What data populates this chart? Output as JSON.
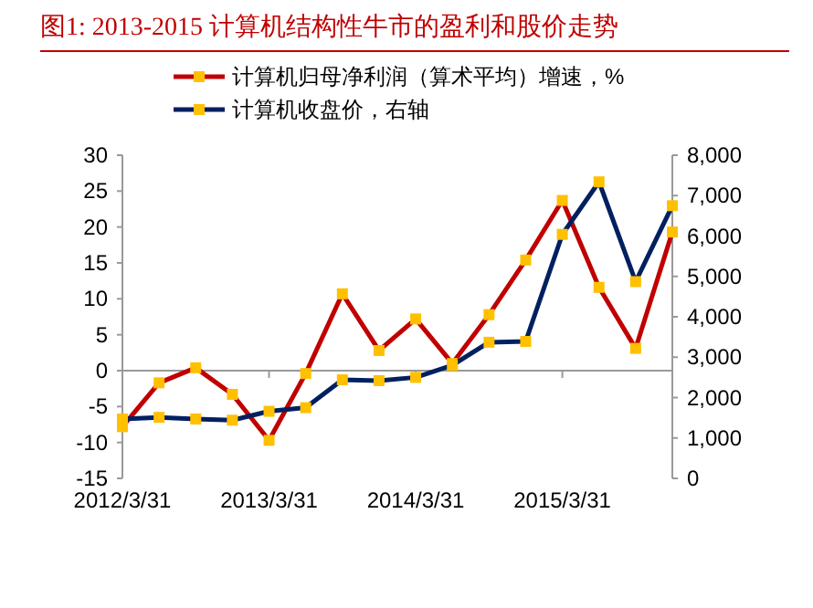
{
  "chart_data": {
    "type": "line",
    "title": "图1:  2013-2015 计算机结构性牛市的盈利和股价走势",
    "categories": [
      "2012/3/31",
      null,
      null,
      null,
      "2013/3/31",
      null,
      null,
      null,
      "2014/3/31",
      null,
      null,
      null,
      "2015/3/31",
      null,
      null,
      null
    ],
    "series": [
      {
        "name": "计算机归母净利润（算术平均）增速，%",
        "color": "#c00000",
        "values": [
          -7.8,
          -1.7,
          0.4,
          -3.3,
          -9.7,
          -0.4,
          10.7,
          2.8,
          7.2,
          1.0,
          7.8,
          15.4,
          23.7,
          11.6,
          3.1,
          19.3
        ]
      },
      {
        "name": "计算机收盘价，右轴",
        "color": "#002060",
        "axis": "y2",
        "values": [
          1470,
          1510,
          1470,
          1440,
          1660,
          1750,
          2440,
          2420,
          2500,
          2800,
          3370,
          3390,
          6040,
          7340,
          4870,
          6750
        ]
      }
    ],
    "ylim": [
      -15,
      30
    ],
    "yticks": [
      -15,
      -10,
      -5,
      0,
      5,
      10,
      15,
      20,
      25,
      30
    ],
    "y2lim": [
      0,
      8000
    ],
    "y2ticks": [
      0,
      {
        "value": 1000,
        "label": "1,000"
      },
      {
        "value": 2000,
        "label": "2,000"
      },
      {
        "value": 3000,
        "label": "3,000"
      },
      {
        "value": 4000,
        "label": "4,000"
      },
      {
        "value": 5000,
        "label": "5,000"
      },
      {
        "value": 6000,
        "label": "6,000"
      },
      {
        "value": 7000,
        "label": "7,000"
      },
      {
        "value": 8000,
        "label": "8,000"
      }
    ],
    "legend": "top left",
    "marker": "square",
    "line_style": "solid"
  }
}
